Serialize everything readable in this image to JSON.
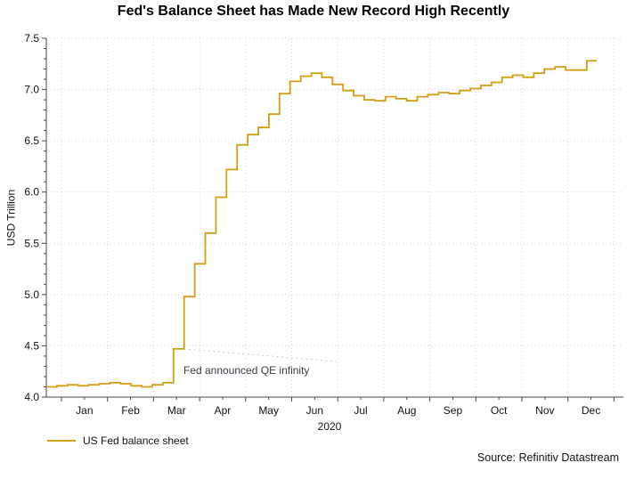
{
  "title": "Fed's Balance Sheet has Made New Record High Recently",
  "source": "Source: Refinitiv Datastream",
  "colors": {
    "line": "#D0A014",
    "grid": "#F4CEC8",
    "axis": "#4A4A4A",
    "annotation_text": "#3A3A48",
    "leader_line": "#A9C0DC",
    "background": "#FFFFFF"
  },
  "chart_data": {
    "type": "line",
    "line_style": "step",
    "title": "Fed's Balance Sheet has Made New Record High Recently",
    "xlabel": "2020",
    "ylabel": "USD Trillion",
    "ylim": [
      4.0,
      7.5
    ],
    "yticks": [
      "4.0",
      "4.5",
      "5.0",
      "5.5",
      "6.0",
      "6.5",
      "7.0",
      "7.5"
    ],
    "ytick_minor_step": 0.1,
    "months": [
      "Jan",
      "Feb",
      "Mar",
      "Apr",
      "May",
      "Jun",
      "Jul",
      "Aug",
      "Sep",
      "Oct",
      "Nov",
      "Dec"
    ],
    "grid": "dotted",
    "legend_position": "bottom-left",
    "annotation": {
      "text": "Fed announced QE infinity",
      "anchor_week_index": 13,
      "anchor_value": 4.47
    },
    "series": [
      {
        "name": "US Fed balance sheet",
        "color": "#D0A014",
        "interval": "weekly",
        "units": "USD Trillion",
        "values": [
          4.1,
          4.11,
          4.12,
          4.11,
          4.12,
          4.13,
          4.14,
          4.13,
          4.11,
          4.1,
          4.12,
          4.14,
          4.47,
          4.98,
          5.3,
          5.6,
          5.95,
          6.22,
          6.46,
          6.56,
          6.63,
          6.76,
          6.96,
          7.08,
          7.13,
          7.16,
          7.12,
          7.05,
          6.99,
          6.94,
          6.9,
          6.89,
          6.93,
          6.91,
          6.89,
          6.93,
          6.95,
          6.97,
          6.96,
          6.99,
          7.01,
          7.04,
          7.07,
          7.12,
          7.14,
          7.12,
          7.16,
          7.2,
          7.22,
          7.19,
          7.19,
          7.28
        ]
      }
    ]
  },
  "legend": {
    "items": [
      {
        "label": "US Fed balance sheet",
        "color": "#D0A014"
      }
    ]
  }
}
